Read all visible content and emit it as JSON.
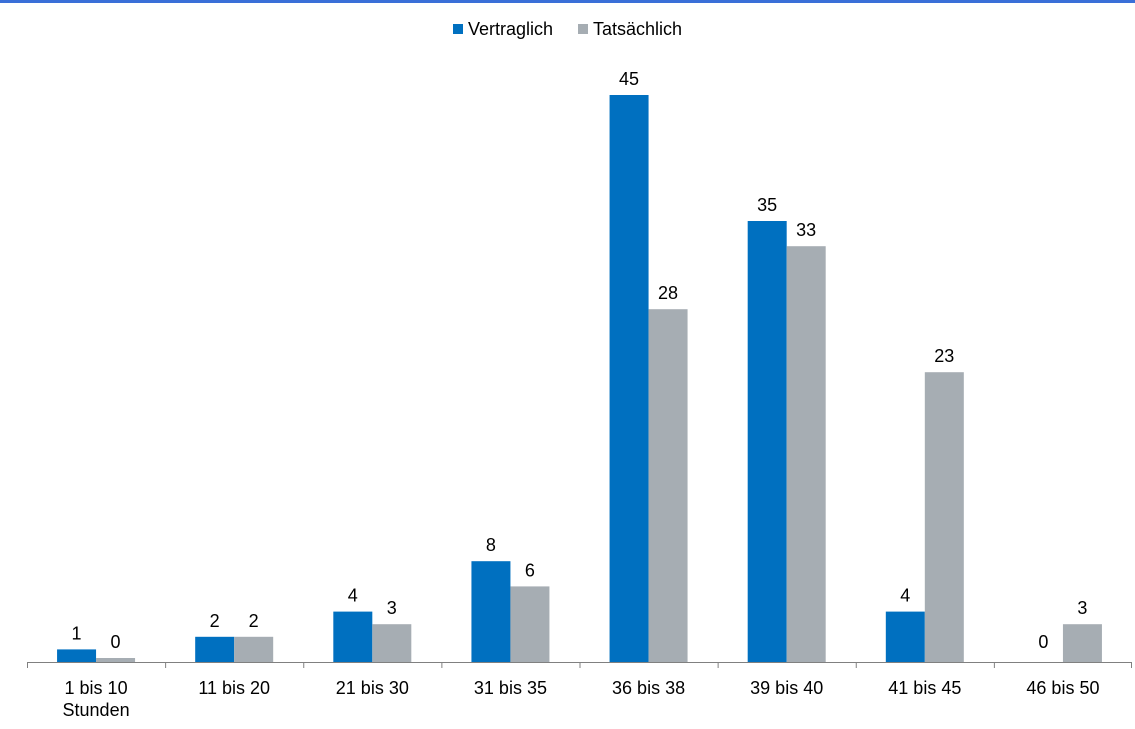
{
  "chart_data": {
    "type": "bar",
    "categories": [
      [
        "1 bis 10",
        "Stunden"
      ],
      [
        "11 bis 20"
      ],
      [
        "21 bis 30"
      ],
      [
        "31 bis 35"
      ],
      [
        "36 bis 38"
      ],
      [
        "39 bis 40"
      ],
      [
        "41 bis 45"
      ],
      [
        "46 bis 50"
      ]
    ],
    "series": [
      {
        "name": "Vertraglich",
        "color": "#0070c0",
        "values": [
          1,
          2,
          4,
          8,
          45,
          35,
          4,
          0
        ]
      },
      {
        "name": "Tatsächlich",
        "color": "#a6adb3",
        "values": [
          0,
          2,
          3,
          6,
          28,
          33,
          23,
          3
        ]
      }
    ],
    "data_labels": true,
    "legend_position": "top-center",
    "grid": false,
    "ylim": [
      0,
      45
    ]
  }
}
